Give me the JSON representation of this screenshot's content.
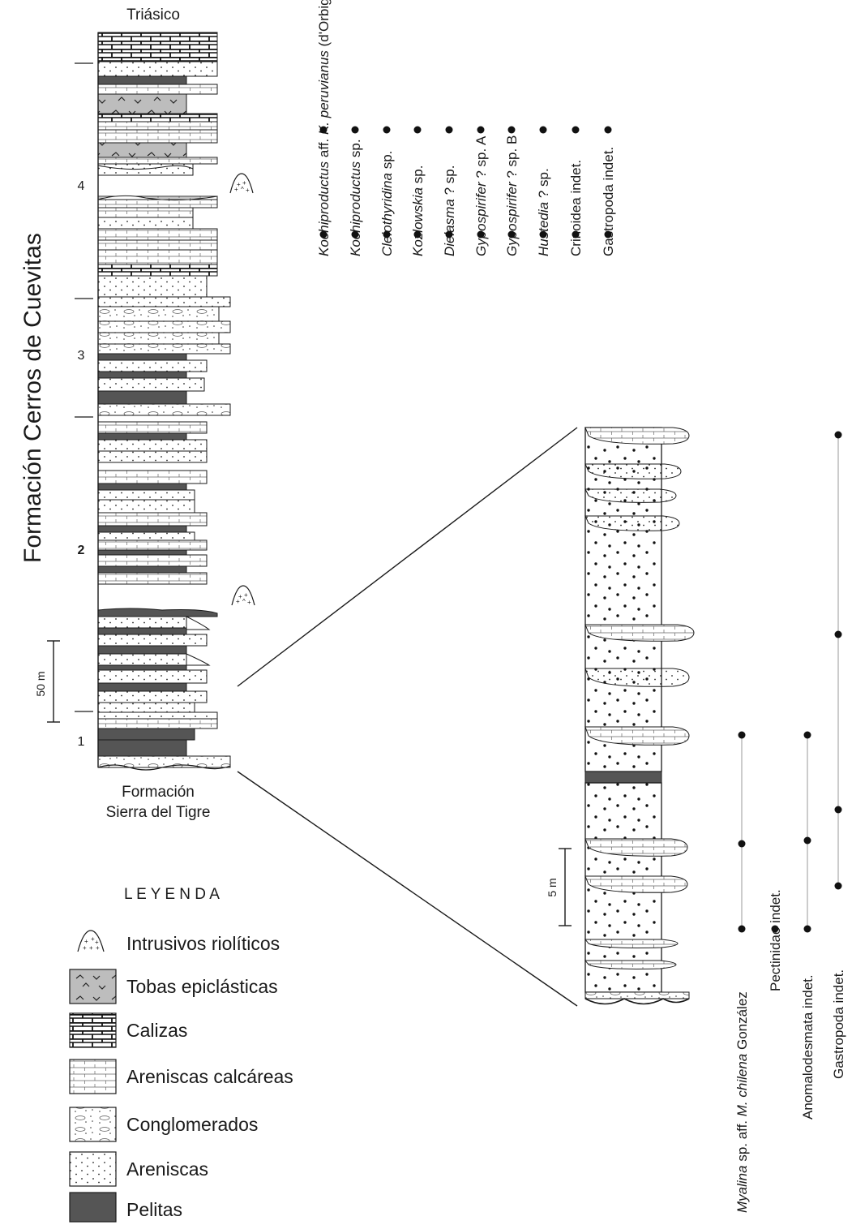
{
  "formation_title": "Formación Cerros de Cuevitas",
  "top_label": "Triásico",
  "base_label_line1": "Formación",
  "base_label_line2": "Sierra del Tigre",
  "unit_numbers": [
    "1",
    "2",
    "3",
    "4"
  ],
  "scale_main": "50 m",
  "scale_detail": "5 m",
  "upper_fauna": [
    {
      "italic": "Kochiproductus",
      "rest": " aff. ",
      "italic2": "K. peruvianus",
      "rest2": " (d'Orbigny)"
    },
    {
      "italic": "Kochiproductus",
      "rest": " sp."
    },
    {
      "italic": "Cleiothyridina",
      "rest": " sp."
    },
    {
      "italic": "Kozlowskia",
      "rest": " sp."
    },
    {
      "italic": "Dielasma",
      "rest": " ? sp."
    },
    {
      "italic": "Gypospirifer",
      "rest": " ? sp. A"
    },
    {
      "italic": "Gypospirifer",
      "rest": " ? sp. B"
    },
    {
      "italic": "Hustedia",
      "rest": " ? sp."
    },
    {
      "italic": "",
      "rest": "Crinoidea indet."
    },
    {
      "italic": "",
      "rest": "Gastropoda  indet."
    }
  ],
  "lower_fauna": [
    {
      "italic": "Myalina",
      "rest": " sp. aff. ",
      "italic2": "M. chilena",
      "rest2": " González"
    },
    {
      "italic": "",
      "rest": "Pectinidae indet."
    },
    {
      "italic": "",
      "rest": "Anomalodesmata indet."
    },
    {
      "italic": "",
      "rest": "Gastropoda  indet."
    }
  ],
  "legend": {
    "title": "L E Y E N D A",
    "items": [
      {
        "key": "intrusivos",
        "label": "Intrusivos riolíticos"
      },
      {
        "key": "tobas",
        "label": "Tobas epiclásticas"
      },
      {
        "key": "calizas",
        "label": "Calizas"
      },
      {
        "key": "areniscas-calcareas",
        "label": "Areniscas calcáreas"
      },
      {
        "key": "conglomerados",
        "label": "Conglomerados"
      },
      {
        "key": "areniscas",
        "label": "Areniscas"
      },
      {
        "key": "pelitas",
        "label": "Pelitas"
      }
    ]
  },
  "colors": {
    "pelitas": "#555555",
    "tobas": "#bdbdbd",
    "ink": "#1a1a1a"
  }
}
